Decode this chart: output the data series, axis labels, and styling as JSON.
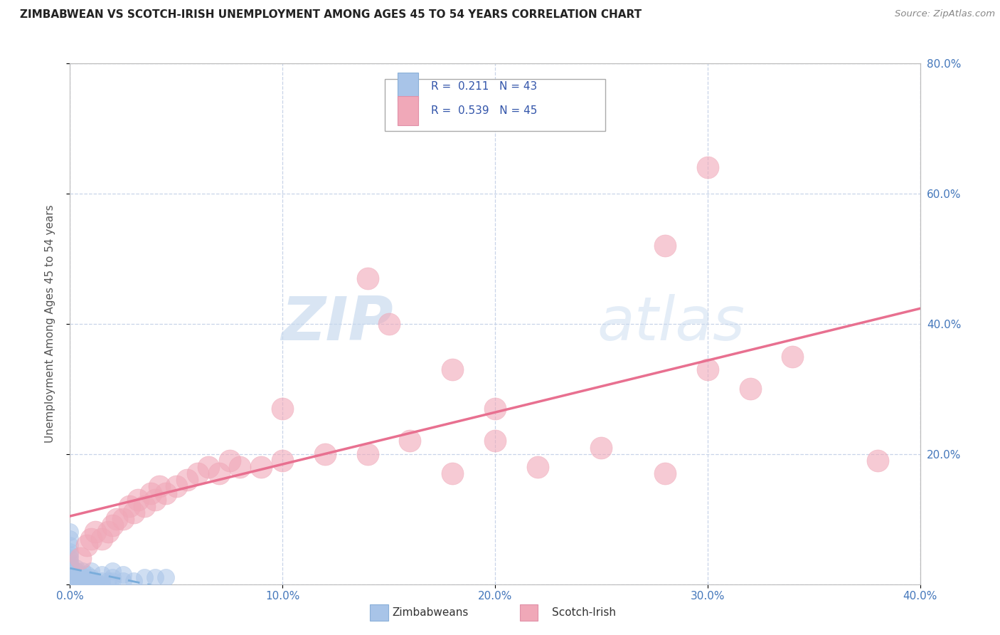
{
  "title": "ZIMBABWEAN VS SCOTCH-IRISH UNEMPLOYMENT AMONG AGES 45 TO 54 YEARS CORRELATION CHART",
  "source": "Source: ZipAtlas.com",
  "ylabel": "Unemployment Among Ages 45 to 54 years",
  "xlim": [
    0.0,
    0.4
  ],
  "ylim": [
    0.0,
    0.8
  ],
  "xtick_labels": [
    "0.0%",
    "10.0%",
    "20.0%",
    "30.0%",
    "40.0%"
  ],
  "xtick_vals": [
    0.0,
    0.1,
    0.2,
    0.3,
    0.4
  ],
  "ytick_labels": [
    "0.0%",
    "20.0%",
    "40.0%",
    "60.0%",
    "80.0%"
  ],
  "ytick_vals": [
    0.0,
    0.2,
    0.4,
    0.6,
    0.8
  ],
  "right_ytick_labels": [
    "80.0%",
    "60.0%",
    "40.0%",
    "20.0%"
  ],
  "right_ytick_vals": [
    0.8,
    0.6,
    0.4,
    0.2
  ],
  "zim_color": "#a8c4e8",
  "si_color": "#f0a8b8",
  "zim_line_color": "#7aaddb",
  "si_line_color": "#e87090",
  "zim_R": 0.211,
  "zim_N": 43,
  "si_R": 0.539,
  "si_N": 45,
  "watermark_zip": "ZIP",
  "watermark_atlas": "atlas",
  "legend_labels": [
    "Zimbabweans",
    "Scotch-Irish"
  ],
  "zim_scatter": [
    [
      0.0,
      0.0
    ],
    [
      0.0,
      0.005
    ],
    [
      0.0,
      0.01
    ],
    [
      0.0,
      0.015
    ],
    [
      0.0,
      0.02
    ],
    [
      0.0,
      0.025
    ],
    [
      0.0,
      0.03
    ],
    [
      0.0,
      0.035
    ],
    [
      0.0,
      0.04
    ],
    [
      0.0,
      0.045
    ],
    [
      0.0,
      0.05
    ],
    [
      0.0,
      0.06
    ],
    [
      0.005,
      0.0
    ],
    [
      0.005,
      0.005
    ],
    [
      0.005,
      0.01
    ],
    [
      0.005,
      0.015
    ],
    [
      0.008,
      0.0
    ],
    [
      0.008,
      0.005
    ],
    [
      0.01,
      0.0
    ],
    [
      0.01,
      0.005
    ],
    [
      0.01,
      0.01
    ],
    [
      0.012,
      0.0
    ],
    [
      0.012,
      0.005
    ],
    [
      0.015,
      0.0
    ],
    [
      0.015,
      0.005
    ],
    [
      0.018,
      0.005
    ],
    [
      0.02,
      0.005
    ],
    [
      0.02,
      0.01
    ],
    [
      0.025,
      0.005
    ],
    [
      0.03,
      0.005
    ],
    [
      0.035,
      0.01
    ],
    [
      0.04,
      0.01
    ],
    [
      0.045,
      0.01
    ],
    [
      0.0,
      0.07
    ],
    [
      0.0,
      0.08
    ],
    [
      0.003,
      0.02
    ],
    [
      0.003,
      0.025
    ],
    [
      0.006,
      0.02
    ],
    [
      0.008,
      0.015
    ],
    [
      0.01,
      0.02
    ],
    [
      0.015,
      0.015
    ],
    [
      0.02,
      0.02
    ],
    [
      0.025,
      0.015
    ]
  ],
  "si_scatter": [
    [
      0.005,
      0.04
    ],
    [
      0.008,
      0.06
    ],
    [
      0.01,
      0.07
    ],
    [
      0.012,
      0.08
    ],
    [
      0.015,
      0.07
    ],
    [
      0.018,
      0.08
    ],
    [
      0.02,
      0.09
    ],
    [
      0.022,
      0.1
    ],
    [
      0.025,
      0.1
    ],
    [
      0.028,
      0.12
    ],
    [
      0.03,
      0.11
    ],
    [
      0.032,
      0.13
    ],
    [
      0.035,
      0.12
    ],
    [
      0.038,
      0.14
    ],
    [
      0.04,
      0.13
    ],
    [
      0.042,
      0.15
    ],
    [
      0.045,
      0.14
    ],
    [
      0.05,
      0.15
    ],
    [
      0.055,
      0.16
    ],
    [
      0.06,
      0.17
    ],
    [
      0.065,
      0.18
    ],
    [
      0.07,
      0.17
    ],
    [
      0.075,
      0.19
    ],
    [
      0.08,
      0.18
    ],
    [
      0.09,
      0.18
    ],
    [
      0.1,
      0.19
    ],
    [
      0.12,
      0.2
    ],
    [
      0.14,
      0.2
    ],
    [
      0.16,
      0.22
    ],
    [
      0.18,
      0.17
    ],
    [
      0.2,
      0.22
    ],
    [
      0.22,
      0.18
    ],
    [
      0.25,
      0.21
    ],
    [
      0.28,
      0.17
    ],
    [
      0.3,
      0.33
    ],
    [
      0.32,
      0.3
    ],
    [
      0.34,
      0.35
    ],
    [
      0.1,
      0.27
    ],
    [
      0.15,
      0.4
    ],
    [
      0.2,
      0.27
    ],
    [
      0.14,
      0.47
    ],
    [
      0.18,
      0.33
    ],
    [
      0.3,
      0.64
    ],
    [
      0.28,
      0.52
    ],
    [
      0.38,
      0.19
    ]
  ],
  "background_color": "#ffffff",
  "grid_color": "#c8d4e8",
  "figsize": [
    14.06,
    8.92
  ],
  "dpi": 100
}
